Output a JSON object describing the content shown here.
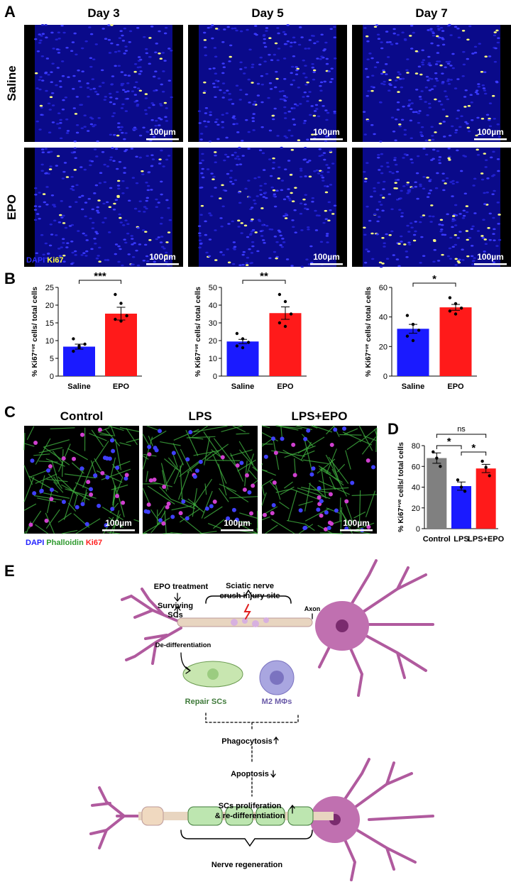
{
  "panel_a": {
    "label": "A",
    "columns": [
      "Day 3",
      "Day 5",
      "Day 7"
    ],
    "rows": [
      "Saline",
      "EPO"
    ],
    "scale_bar": "100µm",
    "stain_legend": [
      "DAPI",
      "Ki67"
    ]
  },
  "panel_b": {
    "label": "B"
  },
  "panel_c": {
    "label": "C",
    "columns": [
      "Control",
      "LPS",
      "LPS+EPO"
    ],
    "scale_bar": "100µm",
    "stain_legend": [
      "DAPI",
      "Phalloidin",
      "Ki67"
    ]
  },
  "panel_d": {
    "label": "D"
  },
  "panel_e": {
    "label": "E",
    "epo_treatment": "EPO treatment",
    "surviving": [
      "Surviving",
      "SCs"
    ],
    "injury_site": [
      "Sciatic nerve",
      "crush injury site"
    ],
    "axon": "Axon",
    "dedifferentiation": "De-differentiation",
    "repair_scs": "Repair SCs",
    "macrophages": "M2 MΦs",
    "phagocytosis": "Phagocytosis",
    "apoptosis": "Apoptosis",
    "proliferation": [
      "SCs proliferation",
      "& re-differentiation"
    ],
    "regeneration": "Nerve regeneration"
  },
  "chart_data": [
    {
      "type": "bar",
      "ylabel": {
        "prefix": "% Ki67",
        "sup": "+ve",
        "suffix": " cells/ total cells"
      },
      "categories": [
        "Saline",
        "EPO"
      ],
      "values": [
        8.3,
        17.6
      ],
      "errors": [
        0.7,
        1.8
      ],
      "points": [
        [
          7,
          8,
          9,
          10.5,
          8.5
        ],
        [
          23,
          20.5,
          17,
          16,
          15.5
        ]
      ],
      "colors": [
        "#1a1aff",
        "#ff1a1a"
      ],
      "ylim": [
        0,
        25
      ],
      "yticks": [
        0,
        5,
        10,
        15,
        20,
        25
      ],
      "comparisons": [
        {
          "label": "***",
          "pair": [
            "Saline",
            "EPO"
          ]
        }
      ]
    },
    {
      "type": "bar",
      "ylabel": {
        "prefix": "% Ki67",
        "sup": "+ve",
        "suffix": " cells/ total cells"
      },
      "categories": [
        "Saline",
        "EPO"
      ],
      "values": [
        19.5,
        35.5
      ],
      "errors": [
        1.2,
        3.5
      ],
      "points": [
        [
          24,
          21,
          19,
          17,
          16
        ],
        [
          46,
          42,
          35,
          30,
          28
        ]
      ],
      "colors": [
        "#1a1aff",
        "#ff1a1a"
      ],
      "ylim": [
        0,
        50
      ],
      "yticks": [
        0,
        10,
        20,
        30,
        40,
        50
      ],
      "comparisons": [
        {
          "label": "**",
          "pair": [
            "Saline",
            "EPO"
          ]
        }
      ]
    },
    {
      "type": "bar",
      "ylabel": {
        "prefix": "% Ki67",
        "sup": "+ve",
        "suffix": " cells/ total cells"
      },
      "categories": [
        "Saline",
        "EPO"
      ],
      "values": [
        32,
        46.5
      ],
      "errors": [
        3,
        2
      ],
      "points": [
        [
          41,
          35,
          31,
          27,
          24
        ],
        [
          53,
          49,
          46,
          44,
          42
        ]
      ],
      "colors": [
        "#1a1aff",
        "#ff1a1a"
      ],
      "ylim": [
        0,
        60
      ],
      "yticks": [
        0,
        20,
        40,
        60
      ],
      "comparisons": [
        {
          "label": "*",
          "pair": [
            "Saline",
            "EPO"
          ]
        }
      ]
    },
    {
      "type": "bar",
      "ylabel": {
        "prefix": "% Ki67",
        "sup": "+ve",
        "suffix": " cells/ total cells"
      },
      "categories": [
        "Control",
        "LPS",
        "LPS+EPO"
      ],
      "values": [
        68,
        41,
        58
      ],
      "errors": [
        5,
        4,
        4
      ],
      "points": [
        [
          74,
          68,
          60
        ],
        [
          47,
          40,
          36
        ],
        [
          65,
          59,
          51
        ]
      ],
      "colors": [
        "#808080",
        "#1a1aff",
        "#ff1a1a"
      ],
      "ylim": [
        0,
        80
      ],
      "yticks": [
        0,
        20,
        40,
        60,
        80
      ],
      "comparisons": [
        {
          "label": "ns",
          "pair": [
            "Control",
            "LPS+EPO"
          ]
        },
        {
          "label": "*",
          "pair": [
            "Control",
            "LPS"
          ]
        },
        {
          "label": "*",
          "pair": [
            "LPS",
            "LPS+EPO"
          ]
        }
      ]
    }
  ]
}
